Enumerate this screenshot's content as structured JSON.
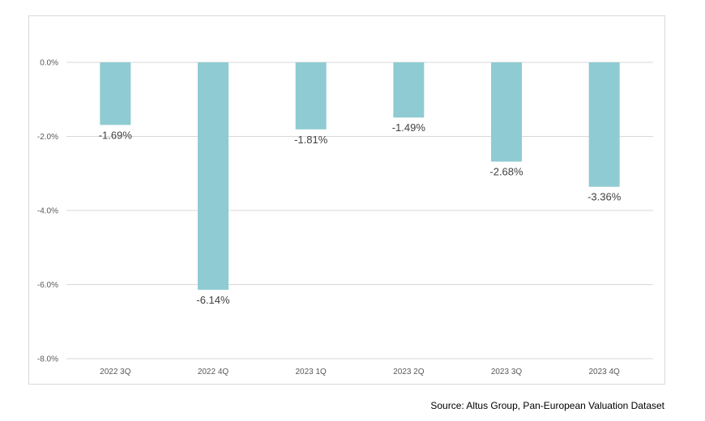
{
  "chart_data": {
    "type": "bar",
    "categories": [
      "2022 3Q",
      "2022 4Q",
      "2023 1Q",
      "2023 2Q",
      "2023 3Q",
      "2023 4Q"
    ],
    "values": [
      -1.69,
      -6.14,
      -1.81,
      -1.49,
      -2.68,
      -3.36
    ],
    "data_labels": [
      "-1.69%",
      "-6.14%",
      "-1.81%",
      "-1.49%",
      "-2.68%",
      "-3.36%"
    ],
    "ylim": [
      -8.0,
      0.0
    ],
    "yticks": [
      0.0,
      -2.0,
      -4.0,
      -6.0,
      -8.0
    ],
    "ytick_labels": [
      "0.0%",
      "-2.0%",
      "-4.0%",
      "-6.0%",
      "-8.0%"
    ],
    "title": "",
    "xlabel": "",
    "ylabel": "",
    "grid": true,
    "legend": "none",
    "bar_color": "#8fcbd2"
  },
  "source": "Source: Altus Group, Pan-European Valuation Dataset"
}
